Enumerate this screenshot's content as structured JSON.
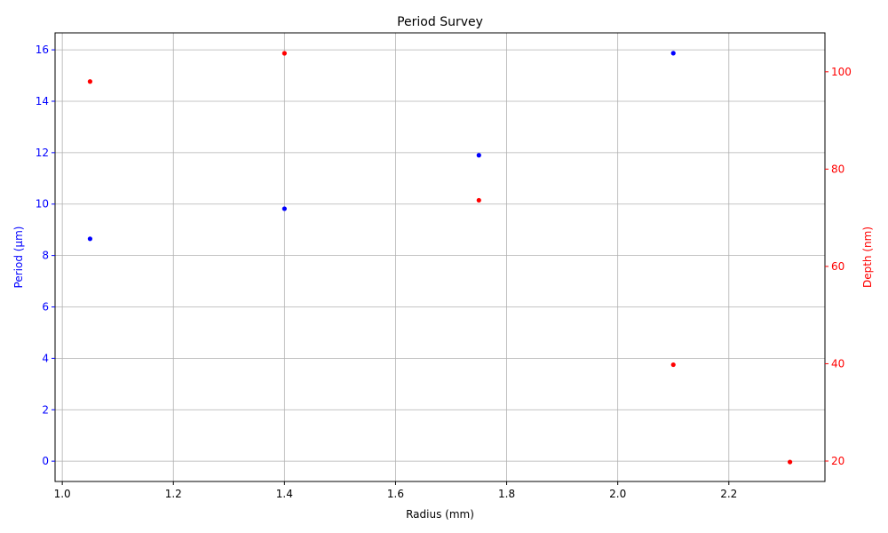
{
  "chart_data": {
    "type": "scatter",
    "title": "Period Survey",
    "xlabel": "Radius (mm)",
    "ylabel": "Period (µm)",
    "y2label": "Depth (nm)",
    "xlim": [
      0.987,
      2.373
    ],
    "ylim": [
      -0.79,
      16.66
    ],
    "y2lim": [
      15.8,
      108.0
    ],
    "x_ticks": [
      1.0,
      1.2,
      1.4,
      1.6,
      1.8,
      2.0,
      2.2
    ],
    "x_tick_labels": [
      "1.0",
      "1.2",
      "1.4",
      "1.6",
      "1.8",
      "2.0",
      "2.2"
    ],
    "y_ticks": [
      0,
      2,
      4,
      6,
      8,
      10,
      12,
      14,
      16
    ],
    "y_tick_labels": [
      "0",
      "2",
      "4",
      "6",
      "8",
      "10",
      "12",
      "14",
      "16"
    ],
    "y2_ticks": [
      20,
      40,
      60,
      80,
      100
    ],
    "y2_tick_labels": [
      "20",
      "40",
      "60",
      "80",
      "100"
    ],
    "grid": true,
    "colors": {
      "left": "#0000ff",
      "right": "#ff0000",
      "grid": "#b0b0b0",
      "axis": "#000000"
    },
    "series": [
      {
        "axis": "left",
        "color": "#0000ff",
        "x": [
          1.05,
          1.4,
          1.75,
          2.1
        ],
        "y": [
          8.65,
          9.82,
          11.9,
          15.87
        ]
      },
      {
        "axis": "right",
        "color": "#ff0000",
        "x": [
          1.05,
          1.4,
          1.75,
          2.1,
          2.31
        ],
        "y": [
          98.0,
          103.8,
          73.6,
          39.8,
          19.8
        ]
      }
    ]
  }
}
